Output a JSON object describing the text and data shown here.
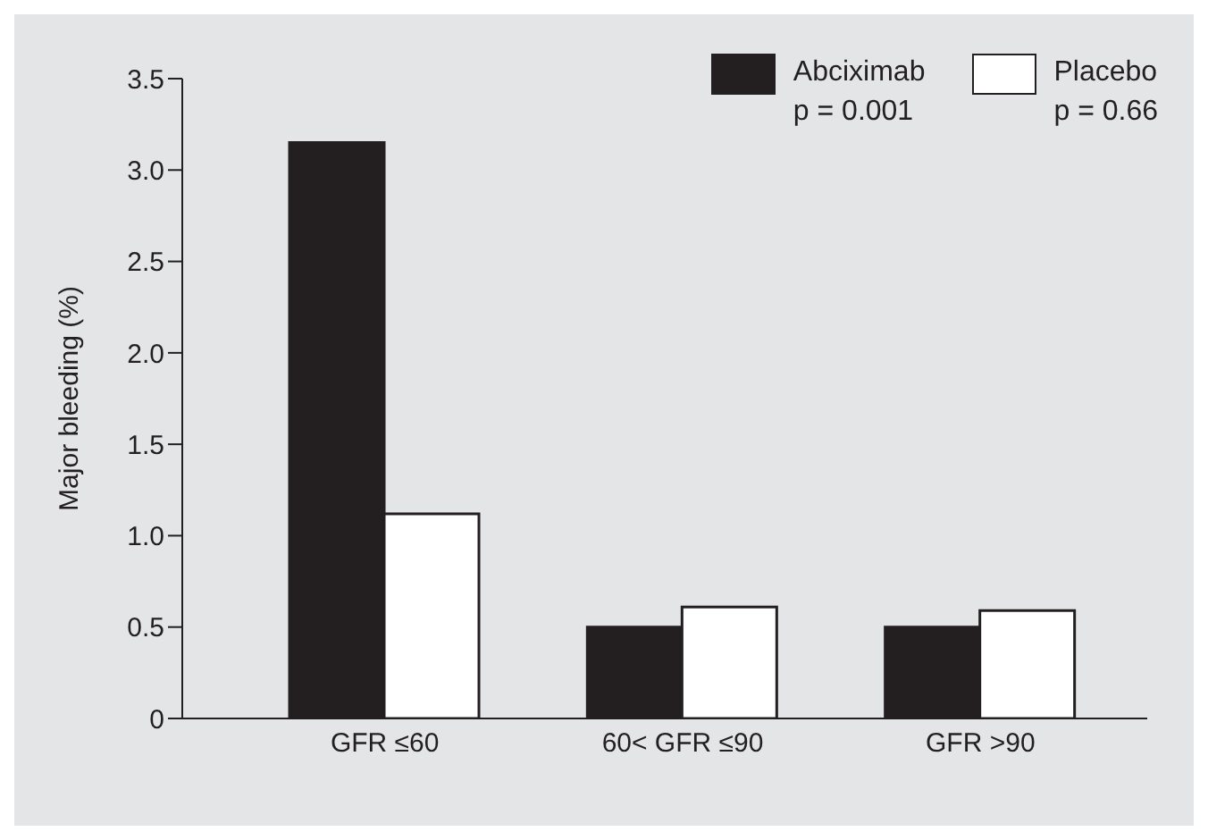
{
  "chart_data": {
    "type": "bar",
    "ylabel": "Major bleeding (%)",
    "categories": [
      "GFR ≤60",
      "60< GFR ≤90",
      "GFR >90"
    ],
    "series": [
      {
        "name": "Abciximab",
        "color": "#231f20",
        "values": [
          3.15,
          0.5,
          0.5
        ]
      },
      {
        "name": "Placebo",
        "color": "#ffffff",
        "values": [
          1.12,
          0.61,
          0.59
        ]
      }
    ],
    "annotations": [
      "p = 0.001",
      "p = 0.66"
    ],
    "ylim": [
      0,
      3.5
    ],
    "yticks": [
      0,
      {
        "value": 0.5,
        "label": "0.5"
      },
      {
        "value": 1,
        "label": "1.0"
      },
      {
        "value": 1.5,
        "label": "1.5"
      },
      {
        "value": 2,
        "label": "2.0"
      },
      {
        "value": 2.5,
        "label": "2.5"
      },
      {
        "value": 3,
        "label": "3.0"
      },
      {
        "value": 3.5,
        "label": "3.5"
      }
    ],
    "grid": false,
    "legend": "top right"
  }
}
